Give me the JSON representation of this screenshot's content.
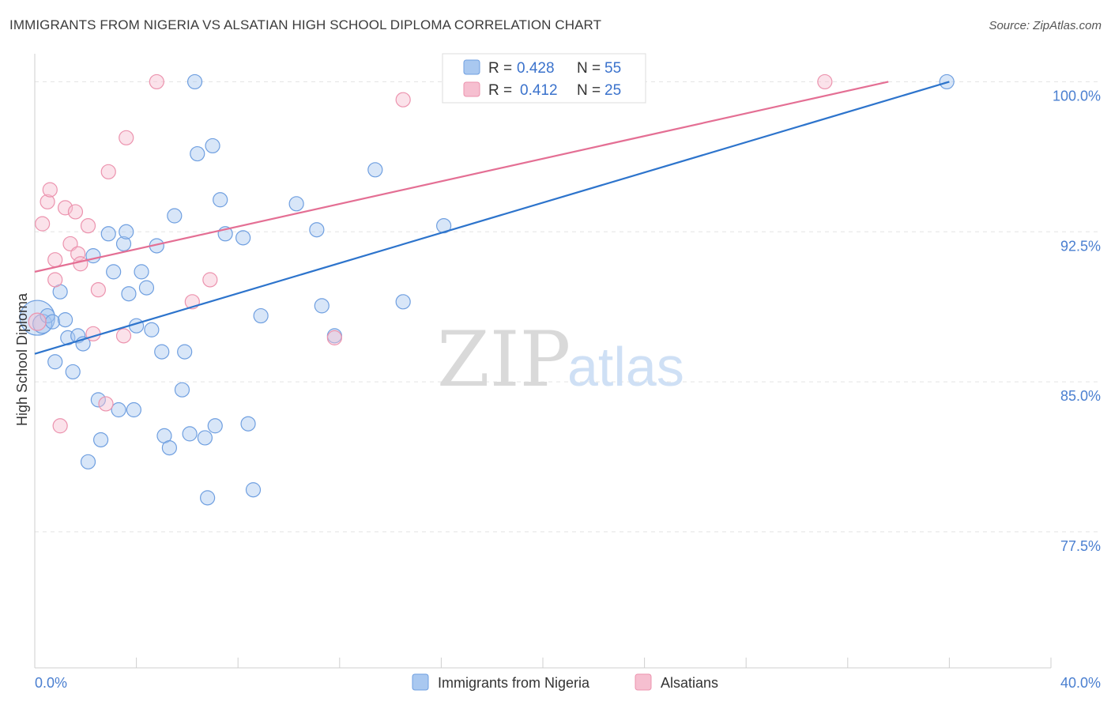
{
  "header": {
    "title": "IMMIGRANTS FROM NIGERIA VS ALSATIAN HIGH SCHOOL DIPLOMA CORRELATION CHART",
    "source": "Source: ZipAtlas.com"
  },
  "watermark": {
    "zip": "ZIP",
    "atlas": "atlas"
  },
  "legend": {
    "rows": [
      {
        "r_label": "R =",
        "r_value": "0.428",
        "n_label": "N =",
        "n_value": "55"
      },
      {
        "r_label": "R =",
        "r_value": "0.412",
        "n_label": "N =",
        "n_value": "25"
      }
    ]
  },
  "colors": {
    "blue_fill": "#a9c8f0",
    "blue_stroke": "#6f9fe0",
    "blue_line": "#2d74cc",
    "pink_fill": "#f6bfd0",
    "pink_stroke": "#ec93ae",
    "pink_line": "#e46f94",
    "grid": "#e3e3e3",
    "tick": "#4a7fd0"
  },
  "chart_data": {
    "type": "scatter",
    "ylabel": "High School Diploma",
    "xlim": [
      0,
      40
    ],
    "ylim": [
      70.7,
      101.4
    ],
    "y_ticks": [
      {
        "value": 100.0,
        "label": "100.0%"
      },
      {
        "value": 92.5,
        "label": "92.5%"
      },
      {
        "value": 85.0,
        "label": "85.0%"
      },
      {
        "value": 77.5,
        "label": "77.5%"
      }
    ],
    "x_ticks": [
      {
        "value": 0,
        "label": "0.0%"
      },
      {
        "value": 40,
        "label": "40.0%"
      }
    ],
    "x_minor_ticks": [
      0,
      4,
      8,
      12,
      16,
      20,
      24,
      28,
      32,
      36,
      40
    ],
    "legend_position": "top-center",
    "series": [
      {
        "name": "Immigrants from Nigeria",
        "color": "blue",
        "trend": {
          "x0": 0,
          "y0": 86.4,
          "x1": 36,
          "y1": 100.0
        },
        "points": [
          [
            0.1,
            88.2,
            22
          ],
          [
            0.3,
            87.9,
            12
          ],
          [
            0.5,
            88.3,
            9
          ],
          [
            0.7,
            88.0,
            9
          ],
          [
            0.8,
            86.0,
            9
          ],
          [
            1.0,
            89.5,
            9
          ],
          [
            1.2,
            88.1,
            9
          ],
          [
            1.3,
            87.2,
            9
          ],
          [
            1.5,
            85.5,
            9
          ],
          [
            1.7,
            87.3,
            9
          ],
          [
            1.9,
            86.9,
            9
          ],
          [
            2.1,
            81.0,
            9
          ],
          [
            2.3,
            91.3,
            9
          ],
          [
            2.5,
            84.1,
            9
          ],
          [
            2.6,
            82.1,
            9
          ],
          [
            2.9,
            92.4,
            9
          ],
          [
            3.1,
            90.5,
            9
          ],
          [
            3.3,
            83.6,
            9
          ],
          [
            3.5,
            91.9,
            9
          ],
          [
            3.6,
            92.5,
            9
          ],
          [
            3.7,
            89.4,
            9
          ],
          [
            3.9,
            83.6,
            9
          ],
          [
            4.0,
            87.8,
            9
          ],
          [
            4.2,
            90.5,
            9
          ],
          [
            4.4,
            89.7,
            9
          ],
          [
            4.6,
            87.6,
            9
          ],
          [
            4.8,
            91.8,
            9
          ],
          [
            5.0,
            86.5,
            9
          ],
          [
            5.1,
            82.3,
            9
          ],
          [
            5.3,
            81.7,
            9
          ],
          [
            5.5,
            93.3,
            9
          ],
          [
            5.8,
            84.6,
            9
          ],
          [
            5.9,
            86.5,
            9
          ],
          [
            6.1,
            82.4,
            9
          ],
          [
            6.3,
            100.0,
            9
          ],
          [
            6.4,
            96.4,
            9
          ],
          [
            6.7,
            82.2,
            9
          ],
          [
            6.8,
            79.2,
            9
          ],
          [
            7.0,
            96.8,
            9
          ],
          [
            7.1,
            82.8,
            9
          ],
          [
            7.3,
            94.1,
            9
          ],
          [
            7.5,
            92.4,
            9
          ],
          [
            8.2,
            92.2,
            9
          ],
          [
            8.4,
            82.9,
            9
          ],
          [
            8.6,
            79.6,
            9
          ],
          [
            8.9,
            88.3,
            9
          ],
          [
            10.3,
            93.9,
            9
          ],
          [
            11.1,
            92.6,
            9
          ],
          [
            11.3,
            88.8,
            9
          ],
          [
            11.8,
            87.3,
            9
          ],
          [
            13.4,
            95.6,
            9
          ],
          [
            14.5,
            89.0,
            9
          ],
          [
            16.1,
            92.8,
            9
          ],
          [
            16.8,
            100.0,
            9
          ],
          [
            35.9,
            100.0,
            9
          ]
        ]
      },
      {
        "name": "Alsatians",
        "color": "pink",
        "trend": {
          "x0": 0,
          "y0": 90.5,
          "x1": 33.6,
          "y1": 100.0
        },
        "points": [
          [
            0.1,
            88.0,
            11
          ],
          [
            0.3,
            92.9,
            9
          ],
          [
            0.5,
            94.0,
            9
          ],
          [
            0.6,
            94.6,
            9
          ],
          [
            0.8,
            91.1,
            9
          ],
          [
            0.8,
            90.1,
            9
          ],
          [
            1.0,
            82.8,
            9
          ],
          [
            1.2,
            93.7,
            9
          ],
          [
            1.4,
            91.9,
            9
          ],
          [
            1.6,
            93.5,
            9
          ],
          [
            1.7,
            91.4,
            9
          ],
          [
            1.8,
            90.9,
            9
          ],
          [
            2.1,
            92.8,
            9
          ],
          [
            2.3,
            87.4,
            9
          ],
          [
            2.5,
            89.6,
            9
          ],
          [
            2.9,
            95.5,
            9
          ],
          [
            2.8,
            83.9,
            9
          ],
          [
            3.5,
            87.3,
            9
          ],
          [
            3.6,
            97.2,
            9
          ],
          [
            4.8,
            100.0,
            9
          ],
          [
            6.2,
            89.0,
            9
          ],
          [
            6.9,
            90.1,
            9
          ],
          [
            11.8,
            87.2,
            9
          ],
          [
            14.5,
            99.1,
            9
          ],
          [
            31.1,
            100.0,
            9
          ]
        ]
      }
    ]
  }
}
